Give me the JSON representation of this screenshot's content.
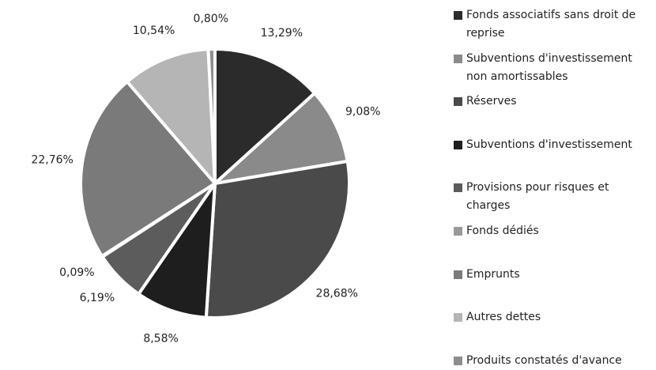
{
  "chart_data": {
    "type": "pie",
    "categories": [
      "Fonds associatifs sans droit de reprise",
      "Subventions d'investissement non amortissables",
      "Réserves",
      "Subventions d'investissement",
      "Provisions pour risques et charges",
      "Fonds dédiés",
      "Emprunts",
      "Autres dettes",
      "Produits constatés d'avance"
    ],
    "values": [
      13.29,
      9.08,
      28.68,
      8.58,
      6.19,
      0.09,
      22.76,
      10.54,
      0.8
    ],
    "value_labels": [
      "13,29%",
      "9,08%",
      "28,68%",
      "8,58%",
      "6,19%",
      "0,09%",
      "22,76%",
      "10,54%",
      "0,80%"
    ],
    "colors": [
      "#2b2b2b",
      "#8a8a8a",
      "#4a4a4a",
      "#1e1e1e",
      "#5c5c5c",
      "#9a9a9a",
      "#7a7a7a",
      "#b5b5b5",
      "#8e8e8e"
    ],
    "legend": "right"
  }
}
